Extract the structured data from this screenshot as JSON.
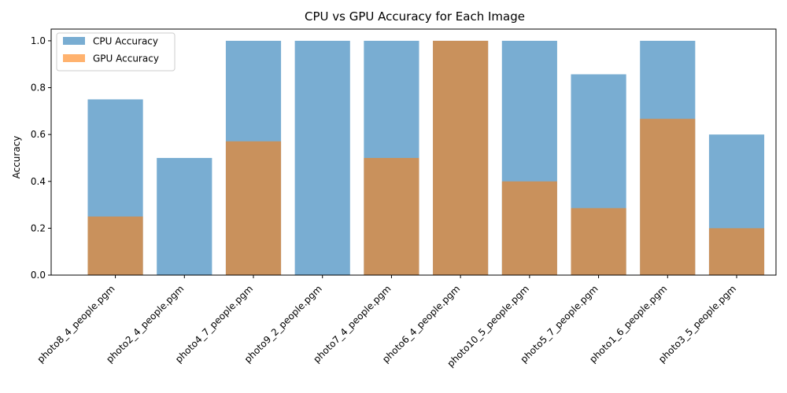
{
  "chart_data": {
    "type": "bar",
    "title": "CPU vs GPU Accuracy for Each Image",
    "xlabel": "",
    "ylabel": "Accuracy",
    "ylim": [
      0,
      1.05
    ],
    "yticks": [
      "0.0",
      "0.2",
      "0.4",
      "0.6",
      "0.8",
      "1.0"
    ],
    "categories": [
      "photo8_4_people.pgm",
      "photo2_4_people.pgm",
      "photo4_7_people.pgm",
      "photo9_2_people.pgm",
      "photo7_4_people.pgm",
      "photo6_4_people.pgm",
      "photo10_5_people.pgm",
      "photo5_7_people.pgm",
      "photo1_6_people.pgm",
      "photo3_5_people.pgm"
    ],
    "series": [
      {
        "name": "CPU Accuracy",
        "color": "#1f77b4",
        "values": [
          0.75,
          0.5,
          1.0,
          1.0,
          1.0,
          1.0,
          1.0,
          0.857,
          1.0,
          0.6
        ]
      },
      {
        "name": "GPU Accuracy",
        "color": "#ff7f0e",
        "values": [
          0.25,
          0.0,
          0.571,
          0.0,
          0.5,
          1.0,
          0.4,
          0.286,
          0.667,
          0.2
        ]
      }
    ],
    "legend_position": "upper-left",
    "grid": false
  }
}
